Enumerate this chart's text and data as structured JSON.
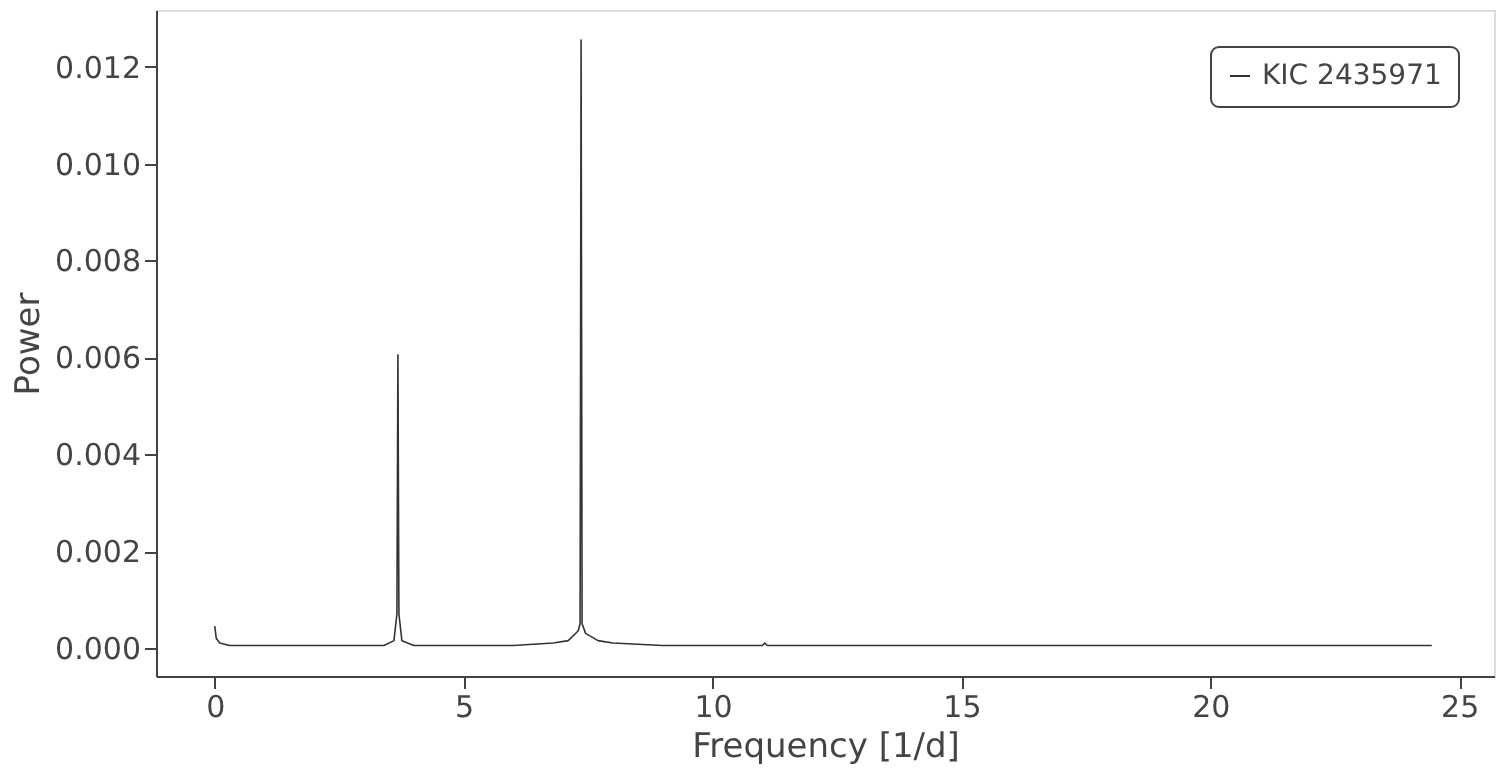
{
  "chart_data": {
    "type": "line",
    "xlabel": "Frequency [1/d]",
    "ylabel": "Power",
    "x": [
      0.0,
      0.03,
      0.1,
      0.3,
      0.6,
      1.0,
      2.0,
      3.0,
      3.4,
      3.6,
      3.66,
      3.68,
      3.7,
      3.76,
      4.0,
      5.0,
      6.0,
      6.8,
      7.1,
      7.3,
      7.34,
      7.36,
      7.38,
      7.45,
      7.7,
      8.0,
      9.0,
      11.0,
      11.05,
      11.1,
      15.0,
      20.0,
      24.45
    ],
    "series": [
      {
        "name": "KIC 2435971",
        "color": "#333333",
        "values": [
          0.00045,
          0.0002,
          0.0001,
          5e-05,
          5e-05,
          5e-05,
          5e-05,
          5e-05,
          5e-05,
          0.00015,
          0.0007,
          0.00605,
          0.0007,
          0.00015,
          5e-05,
          5e-05,
          5e-05,
          0.0001,
          0.00015,
          0.00035,
          0.0005,
          0.01255,
          0.0005,
          0.0003,
          0.00015,
          0.0001,
          5e-05,
          5e-05,
          0.0001,
          5e-05,
          5e-05,
          5e-05,
          5e-05
        ]
      }
    ],
    "xlim": [
      -1.18,
      25.7
    ],
    "xticks": [
      0,
      5,
      10,
      15,
      20,
      25
    ],
    "ylim": [
      -0.00058,
      0.01317
    ],
    "yticks": [
      {
        "value": 0,
        "label": "0.000"
      },
      {
        "value": 0.002,
        "label": "0.002"
      },
      {
        "value": 0.004,
        "label": "0.004"
      },
      {
        "value": 0.006,
        "label": "0.006"
      },
      {
        "value": 0.008,
        "label": "0.008"
      },
      {
        "value": 0.01,
        "label": "0.010"
      },
      {
        "value": 0.012,
        "label": "0.012"
      }
    ],
    "grid": false,
    "legend": "top right",
    "line_style": "solid",
    "marker": "none"
  }
}
